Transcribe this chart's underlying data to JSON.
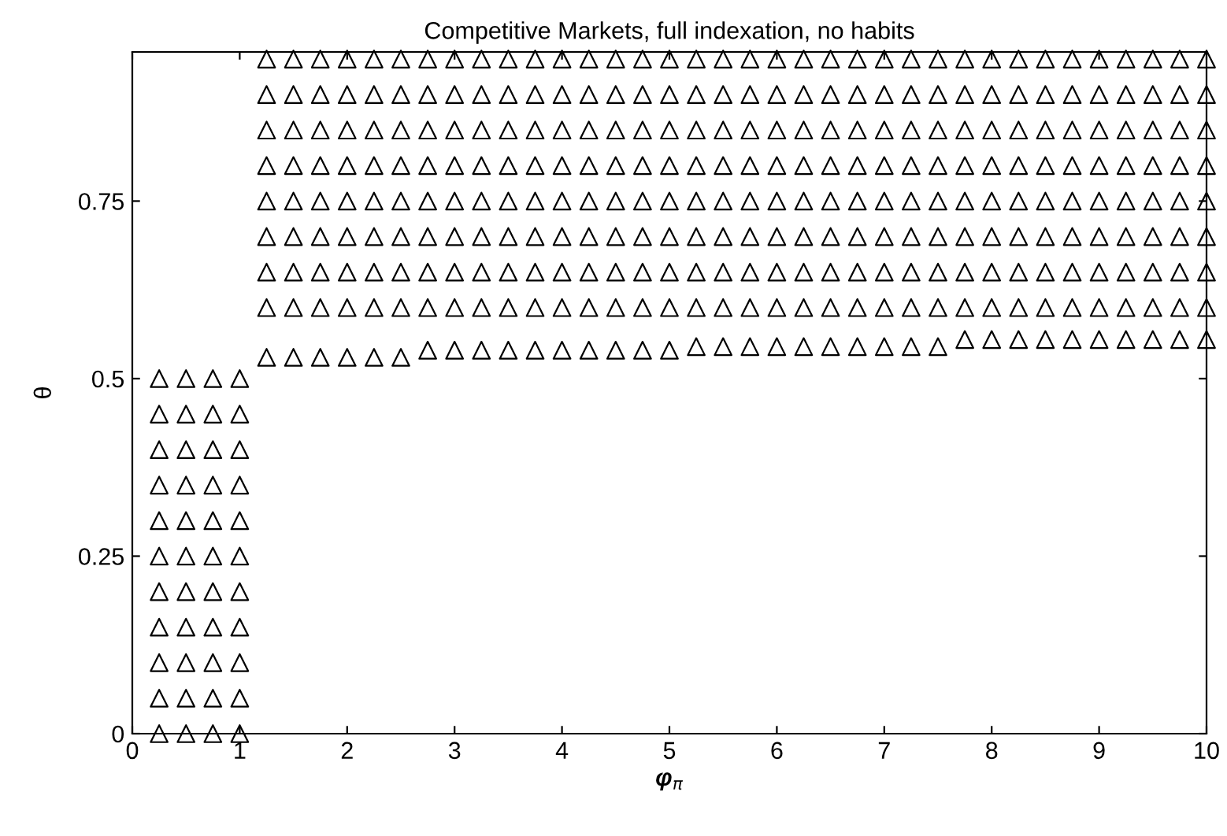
{
  "chart_data": {
    "type": "scatter",
    "title": "Competitive Markets, full indexation, no habits",
    "xlabel": "φ$_{π}$",
    "ylabel": "θ",
    "marker": "triangle",
    "x": [
      1.25,
      1.5,
      1.75,
      2,
      2.25,
      2.5,
      2.75,
      3,
      3.25,
      3.5,
      3.75,
      4,
      4.25,
      4.5,
      4.75,
      5,
      5.25,
      5.5,
      5.75,
      6,
      6.25,
      6.5,
      6.75,
      7,
      7.25,
      7.5,
      7.75,
      8,
      8.25,
      8.5,
      8.75,
      9,
      9.25,
      9.5,
      9.75,
      10
    ],
    "series": [
      {
        "color": "#000000",
        "x": [
          0.25,
          0.5,
          0.75,
          1
        ],
        "values": [
          0,
          0,
          0,
          0
        ]
      },
      {
        "color": "#000000",
        "x": [
          0.25,
          0.5,
          0.75,
          1
        ],
        "values": [
          0.05,
          0.05,
          0.05,
          0.05
        ]
      },
      {
        "color": "#000000",
        "x": [
          0.25,
          0.5,
          0.75,
          1
        ],
        "values": [
          0.1,
          0.1,
          0.1,
          0.1
        ]
      },
      {
        "color": "#000000",
        "x": [
          0.25,
          0.5,
          0.75,
          1
        ],
        "values": [
          0.15,
          0.15,
          0.15,
          0.15
        ]
      },
      {
        "color": "#000000",
        "x": [
          0.25,
          0.5,
          0.75,
          1
        ],
        "values": [
          0.2,
          0.2,
          0.2,
          0.2
        ]
      },
      {
        "color": "#000000",
        "x": [
          0.25,
          0.5,
          0.75,
          1
        ],
        "values": [
          0.25,
          0.25,
          0.25,
          0.25
        ]
      },
      {
        "color": "#000000",
        "x": [
          0.25,
          0.5,
          0.75,
          1
        ],
        "values": [
          0.3,
          0.3,
          0.3,
          0.3
        ]
      },
      {
        "color": "#000000",
        "x": [
          0.25,
          0.5,
          0.75,
          1
        ],
        "values": [
          0.35,
          0.35,
          0.35,
          0.35
        ]
      },
      {
        "color": "#000000",
        "x": [
          0.25,
          0.5,
          0.75,
          1
        ],
        "values": [
          0.4,
          0.4,
          0.4,
          0.4
        ]
      },
      {
        "color": "#000000",
        "x": [
          0.25,
          0.5,
          0.75,
          1
        ],
        "values": [
          0.45,
          0.45,
          0.45,
          0.45
        ]
      },
      {
        "color": "#000000",
        "x": [
          0.25,
          0.5,
          0.75,
          1
        ],
        "values": [
          0.5,
          0.5,
          0.5,
          0.5
        ]
      },
      {
        "color": "#000000",
        "values": [
          0.53,
          0.53,
          0.53,
          0.53,
          0.53,
          0.53,
          0.54,
          0.54,
          0.54,
          0.54,
          0.54,
          0.54,
          0.54,
          0.54,
          0.54,
          0.54,
          0.545,
          0.545,
          0.545,
          0.545,
          0.545,
          0.545,
          0.545,
          0.545,
          0.545,
          0.545,
          0.555,
          0.555,
          0.555,
          0.555,
          0.555,
          0.555,
          0.555,
          0.555,
          0.555,
          0.555
        ]
      },
      {
        "color": "#000000",
        "values": [
          0.6,
          0.6,
          0.6,
          0.6,
          0.6,
          0.6,
          0.6,
          0.6,
          0.6,
          0.6,
          0.6,
          0.6,
          0.6,
          0.6,
          0.6,
          0.6,
          0.6,
          0.6,
          0.6,
          0.6,
          0.6,
          0.6,
          0.6,
          0.6,
          0.6,
          0.6,
          0.6,
          0.6,
          0.6,
          0.6,
          0.6,
          0.6,
          0.6,
          0.6,
          0.6,
          0.6
        ]
      },
      {
        "color": "#000000",
        "values": [
          0.65,
          0.65,
          0.65,
          0.65,
          0.65,
          0.65,
          0.65,
          0.65,
          0.65,
          0.65,
          0.65,
          0.65,
          0.65,
          0.65,
          0.65,
          0.65,
          0.65,
          0.65,
          0.65,
          0.65,
          0.65,
          0.65,
          0.65,
          0.65,
          0.65,
          0.65,
          0.65,
          0.65,
          0.65,
          0.65,
          0.65,
          0.65,
          0.65,
          0.65,
          0.65,
          0.65
        ]
      },
      {
        "color": "#000000",
        "values": [
          0.7,
          0.7,
          0.7,
          0.7,
          0.7,
          0.7,
          0.7,
          0.7,
          0.7,
          0.7,
          0.7,
          0.7,
          0.7,
          0.7,
          0.7,
          0.7,
          0.7,
          0.7,
          0.7,
          0.7,
          0.7,
          0.7,
          0.7,
          0.7,
          0.7,
          0.7,
          0.7,
          0.7,
          0.7,
          0.7,
          0.7,
          0.7,
          0.7,
          0.7,
          0.7,
          0.7
        ]
      },
      {
        "color": "#000000",
        "values": [
          0.75,
          0.75,
          0.75,
          0.75,
          0.75,
          0.75,
          0.75,
          0.75,
          0.75,
          0.75,
          0.75,
          0.75,
          0.75,
          0.75,
          0.75,
          0.75,
          0.75,
          0.75,
          0.75,
          0.75,
          0.75,
          0.75,
          0.75,
          0.75,
          0.75,
          0.75,
          0.75,
          0.75,
          0.75,
          0.75,
          0.75,
          0.75,
          0.75,
          0.75,
          0.75,
          0.75
        ]
      },
      {
        "color": "#000000",
        "values": [
          0.8,
          0.8,
          0.8,
          0.8,
          0.8,
          0.8,
          0.8,
          0.8,
          0.8,
          0.8,
          0.8,
          0.8,
          0.8,
          0.8,
          0.8,
          0.8,
          0.8,
          0.8,
          0.8,
          0.8,
          0.8,
          0.8,
          0.8,
          0.8,
          0.8,
          0.8,
          0.8,
          0.8,
          0.8,
          0.8,
          0.8,
          0.8,
          0.8,
          0.8,
          0.8,
          0.8
        ]
      },
      {
        "color": "#000000",
        "values": [
          0.85,
          0.85,
          0.85,
          0.85,
          0.85,
          0.85,
          0.85,
          0.85,
          0.85,
          0.85,
          0.85,
          0.85,
          0.85,
          0.85,
          0.85,
          0.85,
          0.85,
          0.85,
          0.85,
          0.85,
          0.85,
          0.85,
          0.85,
          0.85,
          0.85,
          0.85,
          0.85,
          0.85,
          0.85,
          0.85,
          0.85,
          0.85,
          0.85,
          0.85,
          0.85,
          0.85
        ]
      },
      {
        "color": "#000000",
        "values": [
          0.9,
          0.9,
          0.9,
          0.9,
          0.9,
          0.9,
          0.9,
          0.9,
          0.9,
          0.9,
          0.9,
          0.9,
          0.9,
          0.9,
          0.9,
          0.9,
          0.9,
          0.9,
          0.9,
          0.9,
          0.9,
          0.9,
          0.9,
          0.9,
          0.9,
          0.9,
          0.9,
          0.9,
          0.9,
          0.9,
          0.9,
          0.9,
          0.9,
          0.9,
          0.9,
          0.9
        ]
      },
      {
        "color": "#000000",
        "values": [
          0.95,
          0.95,
          0.95,
          0.95,
          0.95,
          0.95,
          0.95,
          0.95,
          0.95,
          0.95,
          0.95,
          0.95,
          0.95,
          0.95,
          0.95,
          0.95,
          0.95,
          0.95,
          0.95,
          0.95,
          0.95,
          0.95,
          0.95,
          0.95,
          0.95,
          0.95,
          0.95,
          0.95,
          0.95,
          0.95,
          0.95,
          0.95,
          0.95,
          0.95,
          0.95,
          0.95
        ]
      }
    ],
    "xlim": [
      0,
      10
    ],
    "xticks": [
      0,
      1,
      2,
      3,
      4,
      5,
      6,
      7,
      8,
      9,
      10
    ],
    "ylim": [
      0,
      0.96
    ],
    "yticks": [
      0,
      0.25,
      0.5,
      0.75
    ]
  }
}
